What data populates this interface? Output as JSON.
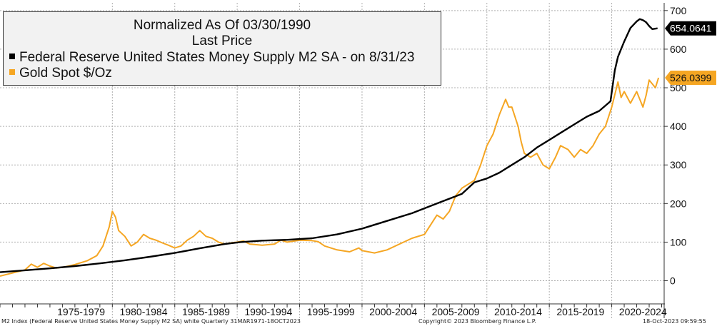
{
  "colors": {
    "m2": "#000000",
    "gold": "#f5a623",
    "grid": "#b0b0b0"
  },
  "legend": {
    "title": "Normalized As Of 03/30/1990",
    "subtitle": "Last Price",
    "series": [
      {
        "label": "Federal Reserve United States Money Supply M2 SA -  on 8/31/23"
      },
      {
        "label": "Gold Spot $/Oz"
      }
    ]
  },
  "footer": {
    "left": "M2 Index (Federal Reserve United States Money Supply M2 SA) white  Quarterly 31MAR1971-18OCT2023",
    "center": "Copyright© 2023 Bloomberg Finance L.P.",
    "right": "18-Oct-2023 09:59:55"
  },
  "chart_data": {
    "type": "line",
    "title": "Normalized As Of 03/30/1990",
    "x_axis": {
      "range": [
        1971.0,
        2024.2
      ],
      "labels": [
        "1975-1979",
        "1980-1984",
        "1985-1989",
        "1990-1994",
        "1995-1999",
        "2000-2004",
        "2005-2009",
        "2010-2014",
        "2015-2019",
        "2020-2024"
      ],
      "label_centers": [
        1977.5,
        1982.5,
        1987.5,
        1992.5,
        1997.5,
        2002.5,
        2007.5,
        2012.5,
        2017.5,
        2022.5
      ],
      "boundaries": [
        1980,
        1985,
        1990,
        1995,
        2000,
        2005,
        2010,
        2015,
        2020
      ]
    },
    "y_axis": {
      "range": [
        -60,
        720
      ],
      "ticks": [
        0,
        100,
        200,
        300,
        400,
        500,
        600,
        700
      ],
      "position": "right"
    },
    "grid": true,
    "last_values": [
      "654.0641",
      "526.0399"
    ],
    "series": [
      {
        "name": "Federal Reserve United States Money Supply M2 SA -  on 8/31/23",
        "x": [
          1971.0,
          1973.0,
          1975.0,
          1977.0,
          1979.0,
          1981.0,
          1983.0,
          1985.0,
          1987.0,
          1989.0,
          1990.25,
          1992.0,
          1994.0,
          1996.0,
          1998.0,
          2000.0,
          2002.0,
          2004.0,
          2006.0,
          2008.0,
          2009.0,
          2010.0,
          2011.0,
          2012.0,
          2013.0,
          2014.0,
          2015.0,
          2016.0,
          2017.0,
          2018.0,
          2019.0,
          2019.9,
          2020.25,
          2020.5,
          2021.0,
          2021.5,
          2022.0,
          2022.25,
          2022.5,
          2022.75,
          2023.0,
          2023.25,
          2023.67
        ],
        "y": [
          22,
          27,
          32,
          38,
          45,
          53,
          62,
          72,
          84,
          95,
          100,
          104,
          106,
          110,
          120,
          135,
          155,
          175,
          200,
          225,
          255,
          265,
          280,
          300,
          320,
          345,
          365,
          385,
          405,
          425,
          440,
          465,
          545,
          580,
          620,
          655,
          672,
          678,
          675,
          670,
          660,
          652,
          654
        ]
      },
      {
        "name": "Gold Spot $/Oz",
        "x": [
          1971.0,
          1972.0,
          1973.0,
          1973.5,
          1974.0,
          1974.5,
          1975.0,
          1975.5,
          1976.0,
          1976.5,
          1977.0,
          1978.0,
          1978.75,
          1979.25,
          1979.75,
          1980.0,
          1980.25,
          1980.5,
          1981.0,
          1981.5,
          1982.0,
          1982.5,
          1983.0,
          1983.5,
          1984.0,
          1984.5,
          1985.0,
          1985.5,
          1986.0,
          1986.5,
          1987.0,
          1987.5,
          1988.0,
          1988.5,
          1989.0,
          1989.5,
          1990.0,
          1990.5,
          1991.0,
          1992.0,
          1993.0,
          1993.5,
          1994.0,
          1995.0,
          1996.0,
          1996.5,
          1997.0,
          1998.0,
          1999.0,
          1999.75,
          2000.0,
          2001.0,
          2002.0,
          2003.0,
          2004.0,
          2005.0,
          2006.0,
          2006.5,
          2007.0,
          2007.5,
          2008.0,
          2008.5,
          2009.0,
          2009.5,
          2010.0,
          2010.5,
          2011.0,
          2011.5,
          2011.75,
          2012.0,
          2012.5,
          2012.75,
          2013.0,
          2013.5,
          2014.0,
          2014.5,
          2015.0,
          2015.5,
          2015.9,
          2016.5,
          2017.0,
          2017.5,
          2018.0,
          2018.5,
          2019.0,
          2019.5,
          2020.0,
          2020.5,
          2020.75,
          2021.0,
          2021.5,
          2022.0,
          2022.5,
          2022.75,
          2023.0,
          2023.5,
          2023.75
        ],
        "y": [
          12,
          20,
          28,
          43,
          35,
          45,
          38,
          33,
          35,
          38,
          42,
          52,
          65,
          90,
          140,
          180,
          165,
          130,
          115,
          90,
          100,
          120,
          110,
          105,
          98,
          92,
          85,
          90,
          105,
          115,
          130,
          115,
          110,
          100,
          95,
          98,
          100,
          103,
          95,
          92,
          95,
          105,
          100,
          105,
          104,
          101,
          90,
          80,
          75,
          85,
          78,
          72,
          80,
          95,
          110,
          120,
          170,
          160,
          180,
          220,
          240,
          250,
          260,
          300,
          350,
          380,
          430,
          470,
          450,
          450,
          400,
          360,
          330,
          320,
          330,
          300,
          290,
          320,
          350,
          340,
          320,
          340,
          330,
          350,
          380,
          400,
          450,
          515,
          475,
          490,
          460,
          490,
          450,
          480,
          520,
          500,
          526
        ]
      }
    ]
  }
}
